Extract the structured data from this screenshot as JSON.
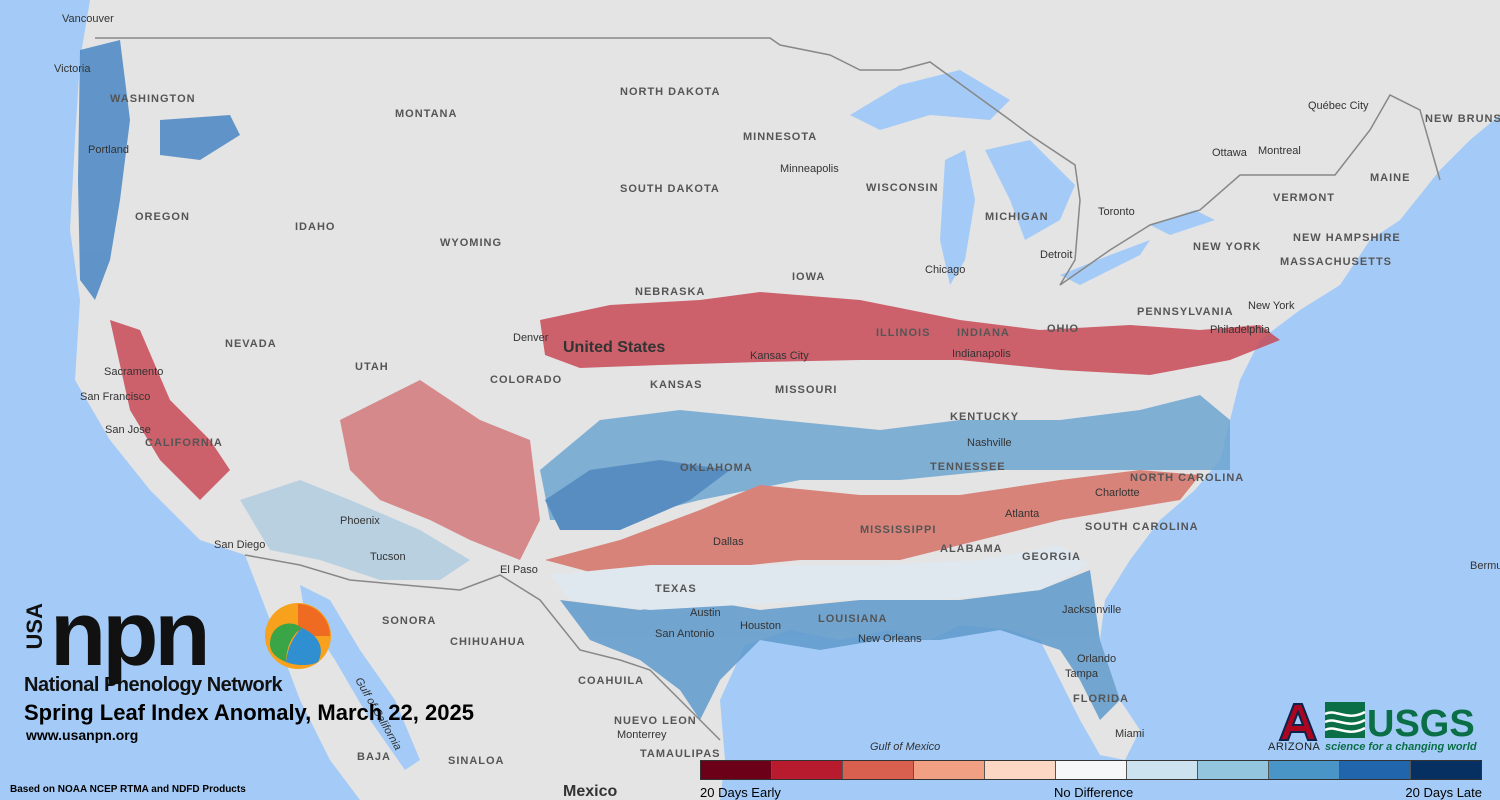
{
  "map": {
    "title": "Spring Leaf Index Anomaly, March 22, 2025",
    "country_label": "United States",
    "mexico_label": "Mexico",
    "state_labels": [
      "WASHINGTON",
      "OREGON",
      "IDAHO",
      "MONTANA",
      "WYOMING",
      "NEVADA",
      "UTAH",
      "COLORADO",
      "CALIFORNIA",
      "NORTH DAKOTA",
      "SOUTH DAKOTA",
      "NEBRASKA",
      "KANSAS",
      "OKLAHOMA",
      "TEXAS",
      "MINNESOTA",
      "IOWA",
      "MISSOURI",
      "WISCONSIN",
      "ILLINOIS",
      "INDIANA",
      "OHIO",
      "MICHIGAN",
      "KENTUCKY",
      "TENNESSEE",
      "MISSISSIPPI",
      "ALABAMA",
      "GEORGIA",
      "LOUISIANA",
      "FLORIDA",
      "SOUTH CAROLINA",
      "NORTH CAROLINA",
      "PENNSYLVANIA",
      "NEW YORK",
      "VERMONT",
      "NEW HAMPSHIRE",
      "MASSACHUSETTS",
      "MAINE",
      "NEW BRUNSWICK",
      "SONORA",
      "CHIHUAHUA",
      "COAHUILA",
      "NUEVO LEON",
      "TAMAULIPAS",
      "SINALOA",
      "BAJA"
    ],
    "city_labels": [
      "Vancouver",
      "Victoria",
      "Portland",
      "Sacramento",
      "San Francisco",
      "San Jose",
      "San Diego",
      "Tucson",
      "Phoenix",
      "Denver",
      "El Paso",
      "Dallas",
      "Austin",
      "San Antonio",
      "Houston",
      "New Orleans",
      "Kansas City",
      "Minneapolis",
      "Chicago",
      "Indianapolis",
      "Detroit",
      "Toronto",
      "Ottawa",
      "Montreal",
      "Québec City",
      "Nashville",
      "Atlanta",
      "Charlotte",
      "Jacksonville",
      "Orlando",
      "Tampa",
      "Miami",
      "Philadelphia",
      "New York",
      "Monterrey",
      "Bermu"
    ],
    "water_labels": [
      "Gulf of California",
      "Gulf of Mexico"
    ]
  },
  "branding": {
    "usa": "USA",
    "npn": "npn",
    "org_name": "National Phenology Network",
    "url": "www.usanpn.org",
    "source_note": "Based on NOAA NCEP RTMA and NDFD Products",
    "arizona": "ARIZONA",
    "usgs": "USGS",
    "usgs_tagline": "science for a changing world"
  },
  "legend": {
    "left_label": "20 Days Early",
    "center_label": "No Difference",
    "right_label": "20 Days Late",
    "colors": [
      "#6b0018",
      "#b81b2e",
      "#d9604e",
      "#f2a083",
      "#fbd7c4",
      "#f6f7f9",
      "#cce2ef",
      "#94c5df",
      "#4a95c7",
      "#2166ac",
      "#053061"
    ]
  }
}
